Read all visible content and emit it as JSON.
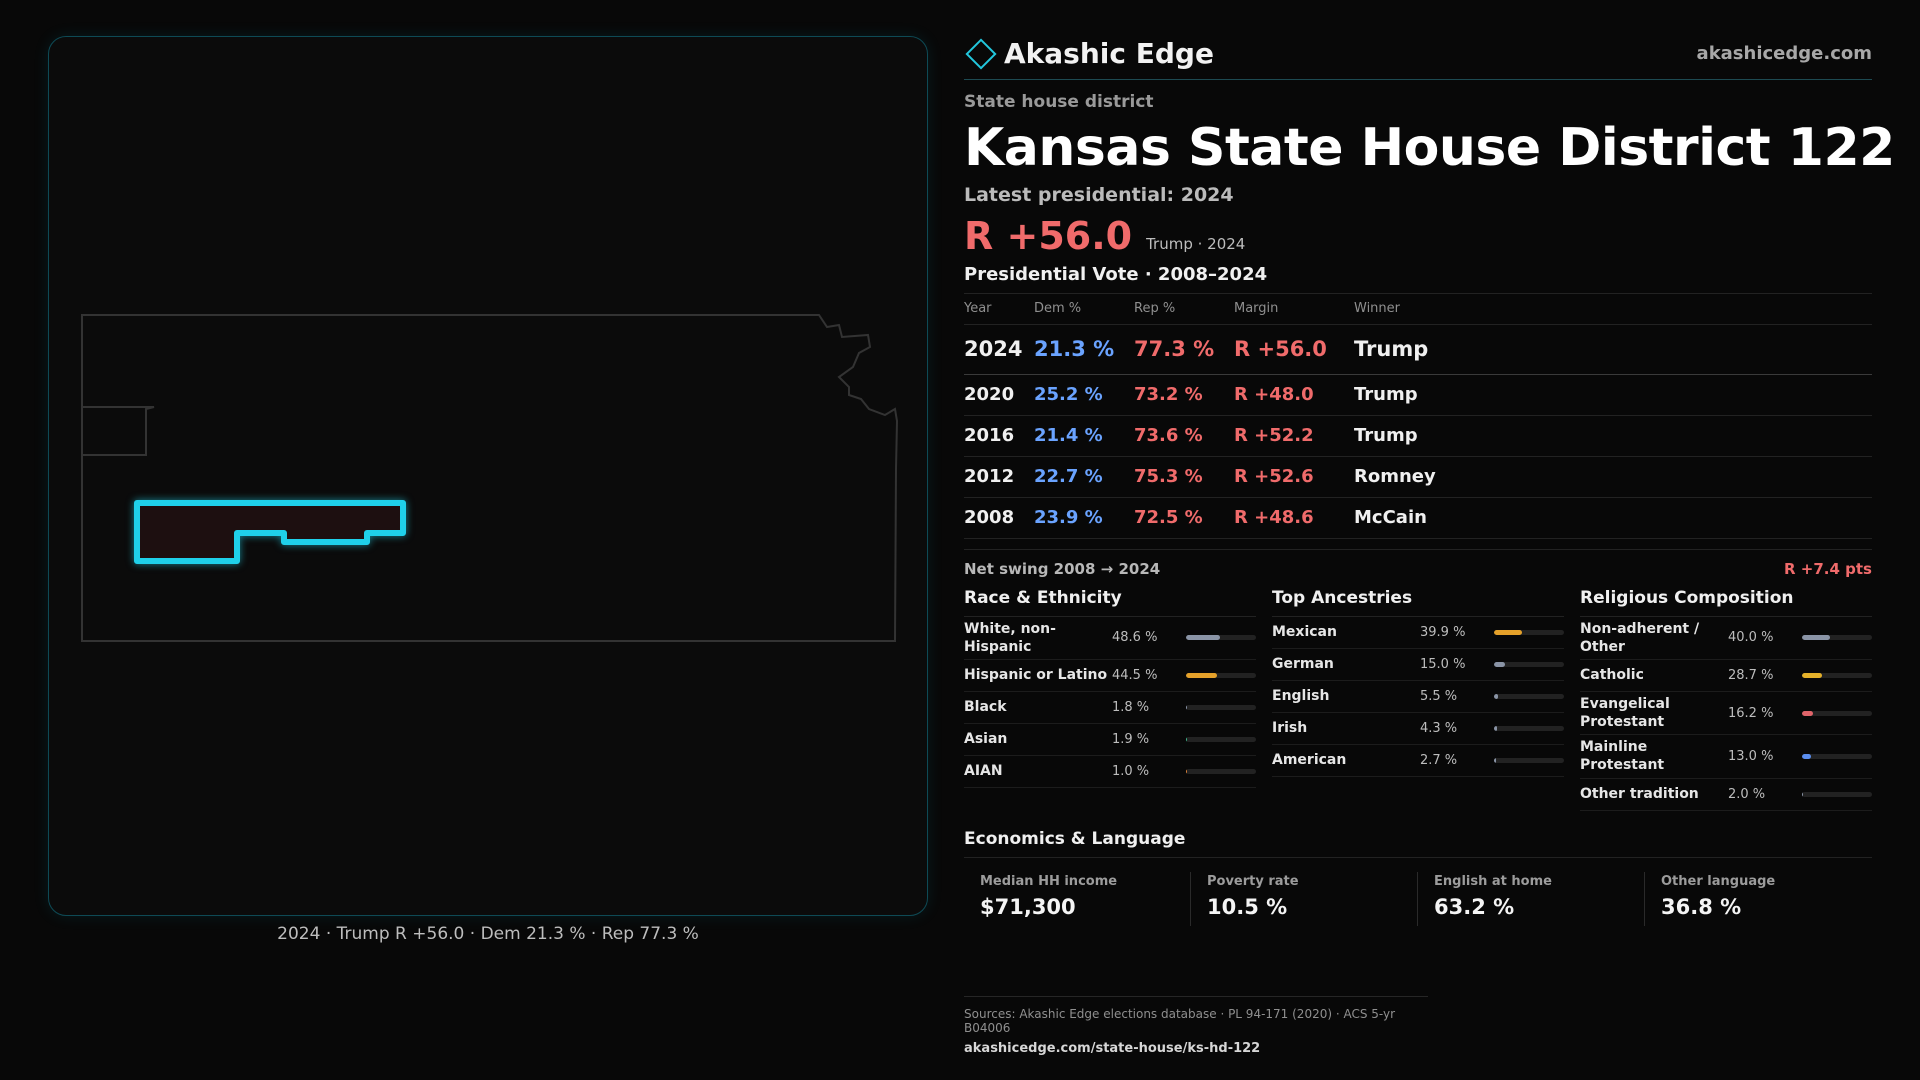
{
  "brand": {
    "name": "Akashic Edge",
    "url": "akashicedge.com",
    "logo_icon": "diamond-outline-icon",
    "accent": "#22c7dd"
  },
  "header": {
    "kicker": "State house district",
    "title": "Kansas State House District 122",
    "latest_label": "Latest presidential: 2024",
    "margin": "R +56.0",
    "margin_note": "Trump · 2024"
  },
  "map": {
    "caption": "2024 · Trump R +56.0 · Dem 21.3 % · Rep 77.3 %",
    "highlight_color": "#1fd0ea"
  },
  "presidential": {
    "title": "Presidential Vote · 2008–2024",
    "columns": [
      "Year",
      "Dem %",
      "Rep %",
      "Margin",
      "Winner"
    ],
    "rows": [
      {
        "year": "2024",
        "dem": "21.3 %",
        "rep": "77.3 %",
        "margin": "R +56.0",
        "winner": "Trump"
      },
      {
        "year": "2020",
        "dem": "25.2 %",
        "rep": "73.2 %",
        "margin": "R +48.0",
        "winner": "Trump"
      },
      {
        "year": "2016",
        "dem": "21.4 %",
        "rep": "73.6 %",
        "margin": "R +52.2",
        "winner": "Trump"
      },
      {
        "year": "2012",
        "dem": "22.7 %",
        "rep": "75.3 %",
        "margin": "R +52.6",
        "winner": "Romney"
      },
      {
        "year": "2008",
        "dem": "23.9 %",
        "rep": "72.5 %",
        "margin": "R +48.6",
        "winner": "McCain"
      }
    ],
    "swing_label": "Net swing 2008 → 2024",
    "swing_value": "R +7.4 pts"
  },
  "demographics": [
    {
      "title": "Race & Ethnicity",
      "rows": [
        {
          "label": "White, non-Hispanic",
          "value": "48.6 %",
          "pct": 48.6,
          "color": "#8a94a6"
        },
        {
          "label": "Hispanic or Latino",
          "value": "44.5 %",
          "pct": 44.5,
          "color": "#e5a12a"
        },
        {
          "label": "Black",
          "value": "1.8 %",
          "pct": 1.8,
          "color": "#8a94a6"
        },
        {
          "label": "Asian",
          "value": "1.9 %",
          "pct": 1.9,
          "color": "#3fb58a"
        },
        {
          "label": "AIAN",
          "value": "1.0 %",
          "pct": 1.0,
          "color": "#d9803a"
        }
      ]
    },
    {
      "title": "Top Ancestries",
      "rows": [
        {
          "label": "Mexican",
          "value": "39.9 %",
          "pct": 39.9,
          "color": "#e5a12a"
        },
        {
          "label": "German",
          "value": "15.0 %",
          "pct": 15.0,
          "color": "#8a94a6"
        },
        {
          "label": "English",
          "value": "5.5 %",
          "pct": 5.5,
          "color": "#8a94a6"
        },
        {
          "label": "Irish",
          "value": "4.3 %",
          "pct": 4.3,
          "color": "#8a94a6"
        },
        {
          "label": "American",
          "value": "2.7 %",
          "pct": 2.7,
          "color": "#8a94a6"
        }
      ]
    },
    {
      "title": "Religious Composition",
      "rows": [
        {
          "label": "Non-adherent / Other",
          "value": "40.0 %",
          "pct": 40.0,
          "color": "#8a94a6"
        },
        {
          "label": "Catholic",
          "value": "28.7 %",
          "pct": 28.7,
          "color": "#e5b12a"
        },
        {
          "label": "Evangelical Protestant",
          "value": "16.2 %",
          "pct": 16.2,
          "color": "#e0646a"
        },
        {
          "label": "Mainline Protestant",
          "value": "13.0 %",
          "pct": 13.0,
          "color": "#5a8ef0"
        },
        {
          "label": "Other tradition",
          "value": "2.0 %",
          "pct": 2.0,
          "color": "#8a94a6"
        }
      ]
    }
  ],
  "economics": {
    "title": "Economics & Language",
    "cards": [
      {
        "label": "Median HH income",
        "value": "$71,300"
      },
      {
        "label": "Poverty rate",
        "value": "10.5 %"
      },
      {
        "label": "English at home",
        "value": "63.2 %"
      },
      {
        "label": "Other language",
        "value": "36.8 %"
      }
    ]
  },
  "sources": {
    "line": "Sources: Akashic Edge elections database · PL 94-171 (2020) · ACS 5-yr B04006",
    "url": "akashicedge.com/state-house/ks-hd-122"
  }
}
